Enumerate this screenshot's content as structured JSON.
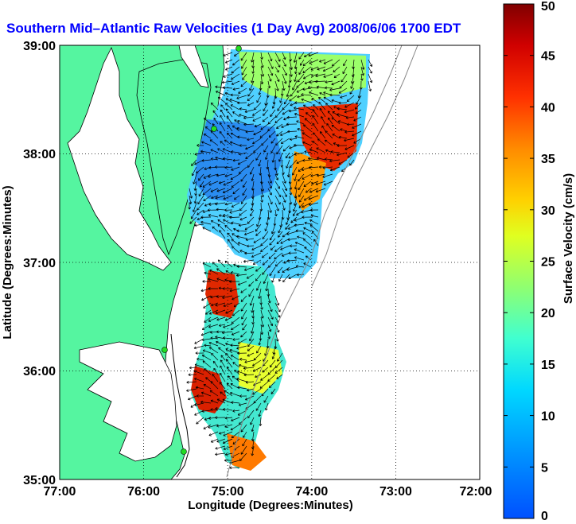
{
  "title": "Southern Mid–Atlantic Raw Velocities (1 Day Avg) 2008/06/06 1700 EDT",
  "title_color": "#0000ff",
  "x_axis": {
    "label": "Longitude (Degrees:Minutes)",
    "ticks": [
      "77:00",
      "76:00",
      "75:00",
      "74:00",
      "73:00",
      "72:00"
    ],
    "range_deg_west": [
      77,
      72
    ]
  },
  "y_axis": {
    "label": "Latitude (Degrees:Minutes)",
    "ticks": [
      "35:00",
      "36:00",
      "37:00",
      "38:00",
      "39:00"
    ],
    "range_deg_north": [
      35,
      39
    ]
  },
  "grid": "dotted",
  "land_color": "#55f5a0",
  "colorbar": {
    "label": "Surface Velocity (cm/s)",
    "ticks": [
      "0",
      "5",
      "10",
      "15",
      "20",
      "25",
      "30",
      "35",
      "40",
      "45",
      "50"
    ],
    "min": 0,
    "max": 50,
    "colormap": "jet"
  },
  "stations_color": "#22dd22"
}
